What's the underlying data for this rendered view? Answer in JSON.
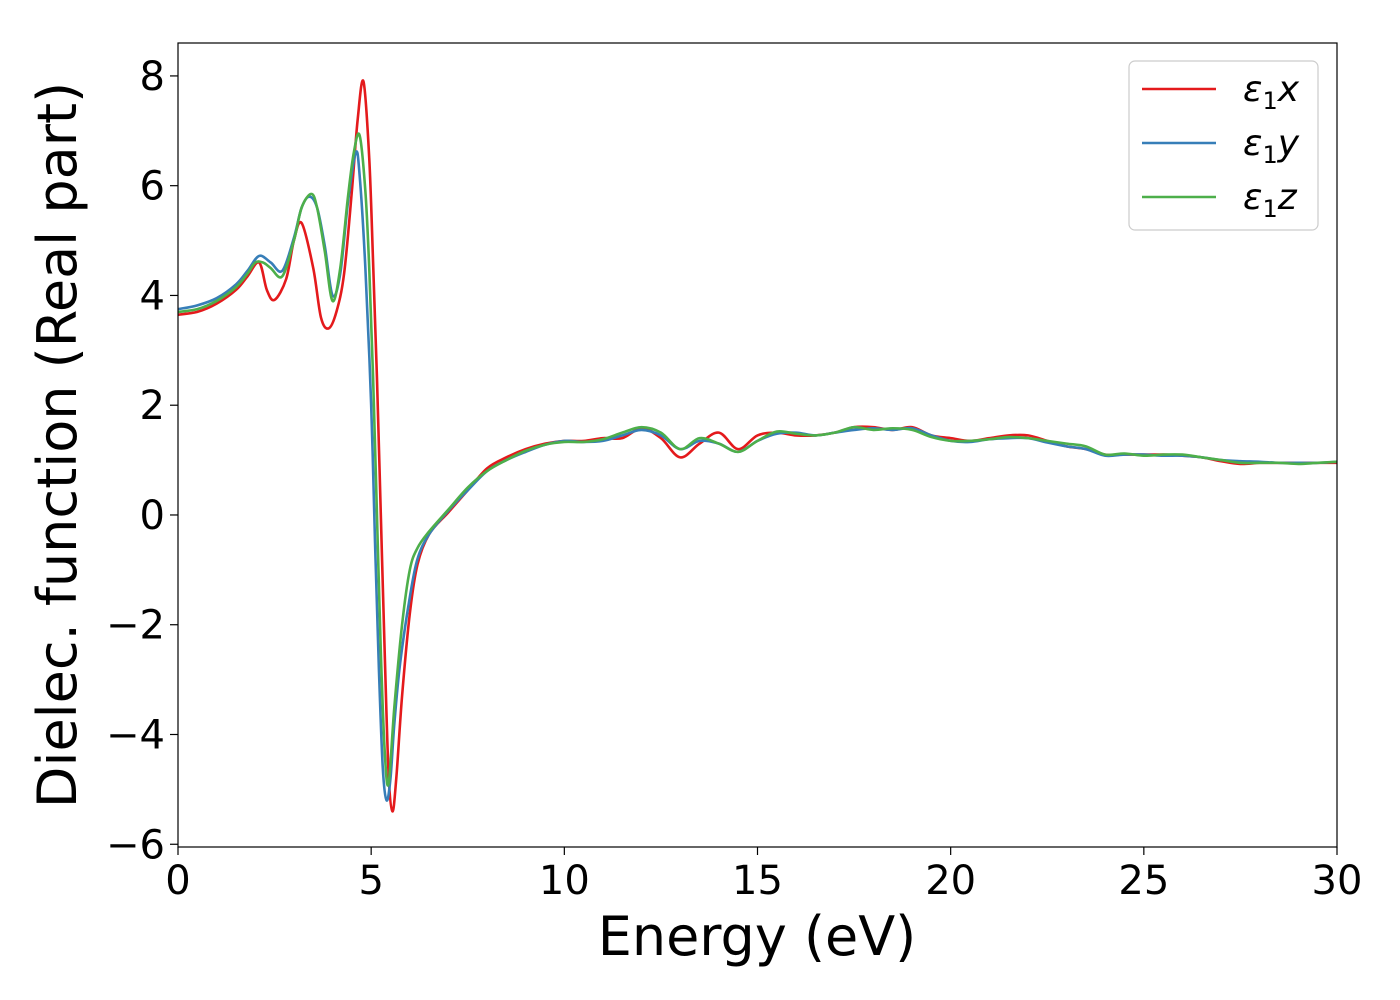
{
  "chart_data": {
    "type": "line",
    "xlabel": "Energy (eV)",
    "ylabel": "Dielec. function (Real part)",
    "xlim": [
      0,
      30
    ],
    "ylim": [
      -6.05,
      8.6
    ],
    "xticks": [
      0,
      5,
      10,
      15,
      20,
      25,
      30
    ],
    "yticks": [
      -6,
      -4,
      -2,
      0,
      2,
      4,
      6,
      8
    ],
    "xtick_labels": [
      "0",
      "5",
      "10",
      "15",
      "20",
      "25",
      "30"
    ],
    "ytick_labels": [
      "−6",
      "−4",
      "−2",
      "0",
      "2",
      "4",
      "6",
      "8"
    ],
    "grid": false,
    "legend_position": "top-right",
    "series": [
      {
        "name": "ε₁x",
        "legend": {
          "base": "ε",
          "sub": "1",
          "suffix": "x"
        },
        "color": "#e41a1c",
        "x": [
          0,
          0.5,
          1.0,
          1.5,
          1.8,
          2.1,
          2.3,
          2.5,
          2.8,
          3.0,
          3.2,
          3.5,
          3.7,
          3.9,
          4.1,
          4.3,
          4.5,
          4.65,
          4.8,
          4.95,
          5.05,
          5.15,
          5.25,
          5.35,
          5.45,
          5.55,
          5.65,
          5.8,
          6.0,
          6.2,
          6.5,
          7.0,
          7.5,
          8.0,
          8.5,
          9.0,
          9.5,
          10.0,
          10.5,
          11.0,
          11.5,
          12.0,
          12.5,
          13.0,
          13.5,
          14.0,
          14.5,
          15.0,
          15.5,
          16.0,
          16.5,
          17.0,
          17.5,
          18.0,
          18.5,
          19.0,
          19.5,
          20.0,
          20.5,
          21.0,
          21.5,
          22.0,
          22.5,
          23.0,
          23.5,
          24.0,
          24.5,
          25.0,
          25.5,
          26.0,
          26.5,
          27.0,
          27.5,
          28.0,
          28.5,
          29.0,
          29.5,
          30.0
        ],
        "y": [
          3.65,
          3.7,
          3.85,
          4.1,
          4.35,
          4.6,
          4.1,
          3.92,
          4.3,
          5.0,
          5.32,
          4.5,
          3.6,
          3.4,
          3.7,
          4.4,
          5.9,
          7.2,
          7.9,
          6.5,
          4.6,
          2.5,
          0.0,
          -2.5,
          -4.7,
          -5.4,
          -4.8,
          -3.3,
          -1.8,
          -0.9,
          -0.35,
          0.05,
          0.45,
          0.85,
          1.05,
          1.2,
          1.3,
          1.35,
          1.35,
          1.4,
          1.4,
          1.58,
          1.4,
          1.05,
          1.3,
          1.5,
          1.2,
          1.45,
          1.5,
          1.45,
          1.45,
          1.5,
          1.6,
          1.6,
          1.55,
          1.6,
          1.45,
          1.4,
          1.35,
          1.4,
          1.45,
          1.45,
          1.35,
          1.25,
          1.2,
          1.1,
          1.1,
          1.1,
          1.1,
          1.08,
          1.05,
          0.98,
          0.93,
          0.95,
          0.95,
          0.95,
          0.95,
          0.95
        ]
      },
      {
        "name": "ε₁y",
        "legend": {
          "base": "ε",
          "sub": "1",
          "suffix": "y"
        },
        "color": "#377eb8",
        "x": [
          0,
          0.5,
          1.0,
          1.5,
          1.8,
          2.1,
          2.4,
          2.7,
          3.0,
          3.2,
          3.4,
          3.6,
          3.8,
          4.0,
          4.2,
          4.4,
          4.6,
          4.7,
          4.85,
          5.0,
          5.1,
          5.2,
          5.3,
          5.4,
          5.5,
          5.6,
          5.75,
          6.0,
          6.2,
          6.5,
          7.0,
          7.5,
          8.0,
          8.5,
          9.0,
          9.5,
          10.0,
          10.5,
          11.0,
          11.5,
          12.0,
          12.5,
          13.0,
          13.5,
          14.0,
          14.5,
          15.0,
          15.5,
          16.0,
          16.5,
          17.0,
          17.5,
          18.0,
          18.5,
          19.0,
          19.5,
          20.0,
          20.5,
          21.0,
          21.5,
          22.0,
          22.5,
          23.0,
          23.5,
          24.0,
          24.5,
          25.0,
          25.5,
          26.0,
          26.5,
          27.0,
          27.5,
          28.0,
          28.5,
          29.0,
          29.5,
          30.0
        ],
        "y": [
          3.75,
          3.82,
          3.95,
          4.2,
          4.45,
          4.72,
          4.6,
          4.45,
          5.05,
          5.6,
          5.8,
          5.6,
          4.9,
          4.0,
          4.4,
          5.7,
          6.6,
          6.2,
          4.5,
          2.0,
          -0.5,
          -2.8,
          -4.6,
          -5.2,
          -4.8,
          -3.8,
          -2.7,
          -1.5,
          -0.8,
          -0.35,
          0.08,
          0.45,
          0.8,
          1.0,
          1.15,
          1.28,
          1.35,
          1.33,
          1.35,
          1.45,
          1.55,
          1.45,
          1.2,
          1.35,
          1.3,
          1.15,
          1.35,
          1.48,
          1.5,
          1.45,
          1.5,
          1.55,
          1.58,
          1.55,
          1.58,
          1.45,
          1.35,
          1.33,
          1.38,
          1.4,
          1.4,
          1.32,
          1.25,
          1.2,
          1.08,
          1.1,
          1.1,
          1.08,
          1.08,
          1.05,
          1.0,
          0.98,
          0.97,
          0.95,
          0.95,
          0.95,
          0.97
        ]
      },
      {
        "name": "ε₁z",
        "legend": {
          "base": "ε",
          "sub": "1",
          "suffix": "z"
        },
        "color": "#4daf4a",
        "x": [
          0,
          0.5,
          1.0,
          1.5,
          1.8,
          2.0,
          2.2,
          2.4,
          2.7,
          3.0,
          3.2,
          3.45,
          3.6,
          3.8,
          4.0,
          4.2,
          4.4,
          4.55,
          4.7,
          4.85,
          4.95,
          5.05,
          5.15,
          5.25,
          5.35,
          5.45,
          5.6,
          5.8,
          6.0,
          6.2,
          6.5,
          7.0,
          7.5,
          8.0,
          8.5,
          9.0,
          9.5,
          10.0,
          10.5,
          11.0,
          11.5,
          12.0,
          12.5,
          13.0,
          13.5,
          14.0,
          14.5,
          15.0,
          15.5,
          16.0,
          16.5,
          17.0,
          17.5,
          18.0,
          18.5,
          19.0,
          19.5,
          20.0,
          20.5,
          21.0,
          21.5,
          22.0,
          22.5,
          23.0,
          23.5,
          24.0,
          24.5,
          25.0,
          25.5,
          26.0,
          26.5,
          27.0,
          27.5,
          28.0,
          28.5,
          29.0,
          29.5,
          30.0
        ],
        "y": [
          3.7,
          3.75,
          3.9,
          4.15,
          4.4,
          4.6,
          4.6,
          4.5,
          4.35,
          5.0,
          5.6,
          5.85,
          5.6,
          4.8,
          3.9,
          4.5,
          5.8,
          6.6,
          6.92,
          5.9,
          4.5,
          2.5,
          0.0,
          -2.5,
          -4.3,
          -4.9,
          -3.5,
          -2.0,
          -1.0,
          -0.6,
          -0.3,
          0.1,
          0.5,
          0.8,
          1.0,
          1.17,
          1.28,
          1.33,
          1.33,
          1.38,
          1.5,
          1.6,
          1.5,
          1.2,
          1.4,
          1.3,
          1.15,
          1.35,
          1.52,
          1.48,
          1.45,
          1.5,
          1.6,
          1.55,
          1.58,
          1.55,
          1.42,
          1.35,
          1.35,
          1.38,
          1.42,
          1.4,
          1.35,
          1.3,
          1.25,
          1.1,
          1.12,
          1.08,
          1.1,
          1.1,
          1.05,
          1.0,
          0.95,
          0.95,
          0.95,
          0.93,
          0.95,
          0.97
        ]
      }
    ]
  }
}
